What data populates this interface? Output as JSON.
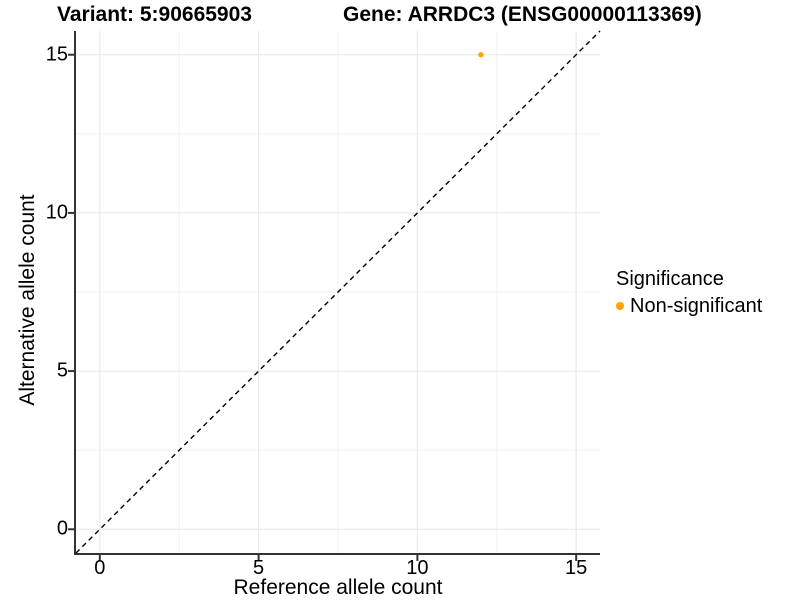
{
  "titles": {
    "left": "Variant: 5:90665903",
    "right": "Gene: ARRDC3 (ENSG00000113369)"
  },
  "chart_data": {
    "type": "scatter",
    "xlabel": "Reference allele count",
    "ylabel": "Alternative allele count",
    "xlim": [
      -0.75,
      15.75
    ],
    "ylim": [
      -0.75,
      15.75
    ],
    "x_ticks": [
      0,
      5,
      10,
      15
    ],
    "y_ticks": [
      0,
      5,
      10,
      15
    ],
    "x_minor_ticks": [
      2.5,
      7.5,
      12.5
    ],
    "y_minor_ticks": [
      2.5,
      7.5,
      12.5
    ],
    "grid": "major+minor",
    "series": [
      {
        "name": "Non-significant",
        "color": "#FFA500",
        "points": [
          {
            "x": 12,
            "y": 15
          }
        ]
      }
    ],
    "reference_line": {
      "type": "identity",
      "slope": 1,
      "intercept": 0,
      "style": "dashed",
      "color": "#000000"
    },
    "legend": {
      "title": "Significance",
      "position": "right",
      "items": [
        {
          "label": "Non-significant",
          "color": "#FFA500",
          "marker": "circle"
        }
      ]
    }
  },
  "colors": {
    "background": "#FFFFFF",
    "grid_major": "#E6E6E6",
    "grid_minor": "#F2F2F2",
    "axis_line": "#333333",
    "tick_mark": "#333333",
    "text": "#000000"
  }
}
